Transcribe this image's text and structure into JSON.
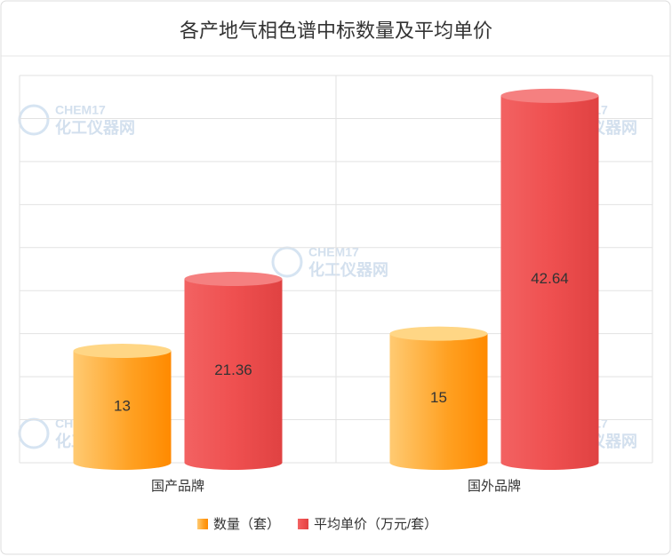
{
  "chart_data": {
    "type": "bar",
    "title": "各产地气相色谱中标数量及平均单价",
    "categories": [
      "国产品牌",
      "国外品牌"
    ],
    "series": [
      {
        "name": "数量（套）",
        "color": "#ff9a1a",
        "values": [
          13,
          15
        ]
      },
      {
        "name": "平均单价（万元/套）",
        "color": "#ee4b4b",
        "values": [
          21.36,
          42.64
        ]
      }
    ],
    "ylim": [
      0,
      45
    ],
    "yticks": [
      0,
      5,
      10,
      15,
      20,
      25,
      30,
      35,
      40,
      45
    ],
    "grid": true,
    "legend": "bottom",
    "watermark": {
      "brand": "CHEM17",
      "name": "化工仪器网"
    }
  }
}
